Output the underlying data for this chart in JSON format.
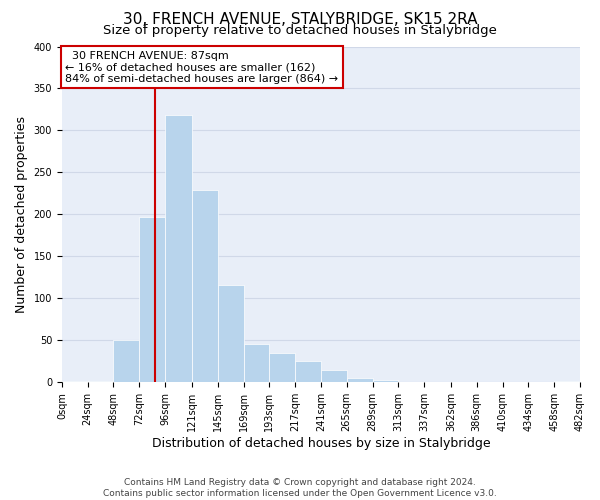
{
  "title": "30, FRENCH AVENUE, STALYBRIDGE, SK15 2RA",
  "subtitle": "Size of property relative to detached houses in Stalybridge",
  "xlabel": "Distribution of detached houses by size in Stalybridge",
  "ylabel": "Number of detached properties",
  "bin_edges": [
    0,
    24,
    48,
    72,
    96,
    121,
    145,
    169,
    193,
    217,
    241,
    265,
    289,
    313,
    337,
    362,
    386,
    410,
    434,
    458,
    482
  ],
  "bin_counts": [
    2,
    2,
    51,
    197,
    319,
    229,
    116,
    46,
    35,
    25,
    15,
    5,
    3,
    1,
    0,
    0,
    0,
    0,
    0,
    2
  ],
  "tick_labels": [
    "0sqm",
    "24sqm",
    "48sqm",
    "72sqm",
    "96sqm",
    "121sqm",
    "145sqm",
    "169sqm",
    "193sqm",
    "217sqm",
    "241sqm",
    "265sqm",
    "289sqm",
    "313sqm",
    "337sqm",
    "362sqm",
    "386sqm",
    "410sqm",
    "434sqm",
    "458sqm",
    "482sqm"
  ],
  "bar_color": "#b8d4ec",
  "vline_x": 87,
  "vline_color": "#cc0000",
  "annotation_title": "30 FRENCH AVENUE: 87sqm",
  "annotation_line1": "← 16% of detached houses are smaller (162)",
  "annotation_line2": "84% of semi-detached houses are larger (864) →",
  "annotation_box_color": "#ffffff",
  "annotation_box_edge": "#cc0000",
  "ylim": [
    0,
    400
  ],
  "yticks": [
    0,
    50,
    100,
    150,
    200,
    250,
    300,
    350,
    400
  ],
  "grid_color": "#d0d8e8",
  "bg_color": "#e8eef8",
  "footer1": "Contains HM Land Registry data © Crown copyright and database right 2024.",
  "footer2": "Contains public sector information licensed under the Open Government Licence v3.0.",
  "title_fontsize": 11,
  "subtitle_fontsize": 9.5,
  "axis_label_fontsize": 9,
  "tick_fontsize": 7,
  "footer_fontsize": 6.5,
  "annotation_fontsize": 8
}
